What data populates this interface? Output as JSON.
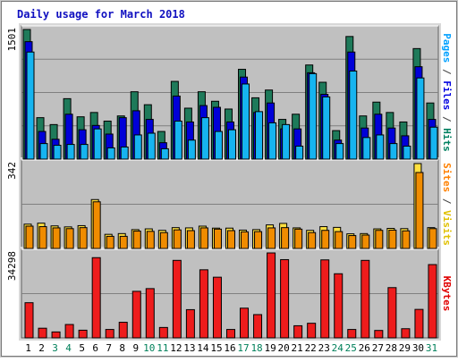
{
  "chart_data": [
    {
      "type": "bar",
      "title": "Daily usage for March 2018",
      "categories": [
        "1",
        "2",
        "3",
        "4",
        "5",
        "6",
        "7",
        "8",
        "9",
        "10",
        "11",
        "12",
        "13",
        "14",
        "15",
        "16",
        "17",
        "18",
        "19",
        "20",
        "21",
        "22",
        "23",
        "24",
        "25",
        "26",
        "27",
        "28",
        "29",
        "30",
        "31"
      ],
      "weekend_days": [
        "3",
        "4",
        "10",
        "11",
        "17",
        "18",
        "24",
        "25",
        "31"
      ],
      "ymax_label": "1501",
      "ylim": [
        0,
        1501
      ],
      "right_label_parts": [
        {
          "text": "Pages",
          "color": "#00a0ff"
        },
        {
          "text": " / ",
          "color": "#404040"
        },
        {
          "text": "Files",
          "color": "#0000e0"
        },
        {
          "text": " / ",
          "color": "#404040"
        },
        {
          "text": "Hits",
          "color": "#008060"
        }
      ],
      "series": [
        {
          "name": "Hits",
          "color": "#1e7a5a",
          "values": [
            1501,
            480,
            400,
            700,
            490,
            540,
            440,
            500,
            780,
            630,
            320,
            900,
            590,
            780,
            670,
            580,
            1040,
            710,
            800,
            460,
            520,
            1090,
            890,
            330,
            1420,
            500,
            660,
            540,
            430,
            1280,
            650
          ]
        },
        {
          "name": "Files",
          "color": "#0000d8",
          "values": [
            1360,
            320,
            230,
            520,
            340,
            390,
            290,
            480,
            560,
            460,
            190,
            730,
            430,
            620,
            600,
            430,
            950,
            540,
            650,
            350,
            350,
            1000,
            750,
            220,
            1240,
            360,
            520,
            360,
            270,
            1070,
            460
          ]
        },
        {
          "name": "Pages",
          "color": "#16b4f0",
          "values": [
            1240,
            180,
            160,
            170,
            170,
            350,
            130,
            140,
            280,
            300,
            120,
            440,
            220,
            480,
            320,
            340,
            870,
            550,
            420,
            400,
            150,
            990,
            720,
            180,
            1020,
            250,
            280,
            180,
            150,
            940,
            370
          ]
        }
      ]
    },
    {
      "type": "bar",
      "categories": [
        "1",
        "2",
        "3",
        "4",
        "5",
        "6",
        "7",
        "8",
        "9",
        "10",
        "11",
        "12",
        "13",
        "14",
        "15",
        "16",
        "17",
        "18",
        "19",
        "20",
        "21",
        "22",
        "23",
        "24",
        "25",
        "26",
        "27",
        "28",
        "29",
        "30",
        "31"
      ],
      "ymax_label": "342",
      "ylim": [
        0,
        342
      ],
      "right_label_parts": [
        {
          "text": "Sites",
          "color": "#ff8000"
        },
        {
          "text": " / ",
          "color": "#404040"
        },
        {
          "text": "Visits",
          "color": "#e0c000"
        }
      ],
      "series": [
        {
          "name": "Visits",
          "color": "#ffe040",
          "values": [
            98,
            102,
            91,
            87,
            92,
            197,
            57,
            60,
            76,
            79,
            73,
            84,
            83,
            90,
            82,
            82,
            74,
            76,
            95,
            101,
            83,
            73,
            88,
            85,
            59,
            60,
            79,
            81,
            80,
            342,
            84
          ]
        },
        {
          "name": "Sites",
          "color": "#f08c00",
          "values": [
            90,
            88,
            83,
            80,
            84,
            188,
            49,
            49,
            70,
            69,
            64,
            75,
            72,
            83,
            78,
            72,
            67,
            68,
            83,
            84,
            78,
            64,
            73,
            68,
            52,
            54,
            73,
            74,
            71,
            306,
            80
          ]
        }
      ]
    },
    {
      "type": "bar",
      "categories": [
        "1",
        "2",
        "3",
        "4",
        "5",
        "6",
        "7",
        "8",
        "9",
        "10",
        "11",
        "12",
        "13",
        "14",
        "15",
        "16",
        "17",
        "18",
        "19",
        "20",
        "21",
        "22",
        "23",
        "24",
        "25",
        "26",
        "27",
        "28",
        "29",
        "30",
        "31"
      ],
      "ymax_label": "34298",
      "ylim": [
        0,
        34298
      ],
      "right_label_parts": [
        {
          "text": "KBytes",
          "color": "#e00000"
        }
      ],
      "series": [
        {
          "name": "KBytes",
          "color": "#ee1c1c",
          "values": [
            14200,
            3900,
            2400,
            5400,
            3100,
            32400,
            3400,
            6300,
            18800,
            19900,
            4200,
            31300,
            11400,
            27500,
            24500,
            3400,
            12000,
            9400,
            34298,
            31600,
            4900,
            5900,
            31500,
            25900,
            3400,
            31300,
            3000,
            20300,
            3700,
            11500,
            29600
          ]
        }
      ]
    }
  ]
}
